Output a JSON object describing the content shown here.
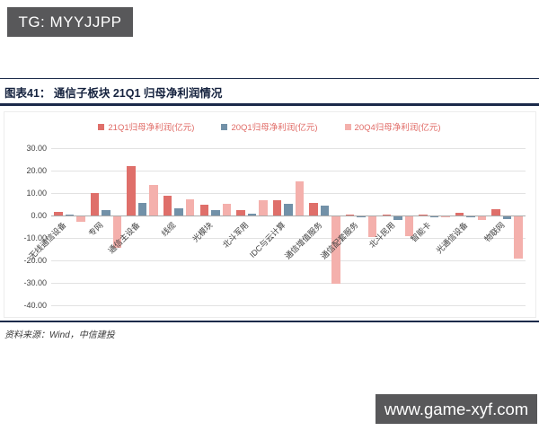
{
  "watermarks": {
    "tg_label": "TG: MYYJJPP",
    "site_label": "www.game-xyf.com"
  },
  "figure": {
    "title": "图表41：  通信子板块 21Q1 归母净利润情况",
    "source": "资料来源：Wind，中信建投"
  },
  "colors": {
    "series_21q1": "#df6f6a",
    "series_20q1": "#7291a8",
    "series_20q4": "#f4b0ac",
    "navy_rule": "#1b2a4a",
    "watermark_bg": "#58585a"
  },
  "chart_data": {
    "type": "bar",
    "title": "通信子板块 21Q1 归母净利润情况",
    "categories": [
      "无线通信设备",
      "专网",
      "通信主设备",
      "线缆",
      "光模块",
      "北斗军用",
      "IDC与云计算",
      "通信增值服务",
      "通信配套服务",
      "北斗民用",
      "智能卡",
      "光通信设备",
      "物联网"
    ],
    "series": [
      {
        "name": "21Q1归母净利润(亿元)",
        "color": "#df6f6a",
        "values": [
          1.7,
          10.0,
          22.0,
          9.0,
          5.0,
          2.4,
          6.7,
          5.6,
          0.3,
          0.2,
          0.5,
          1.1,
          2.9
        ]
      },
      {
        "name": "20Q1归母净利润(亿元)",
        "color": "#7291a8",
        "values": [
          0.4,
          2.4,
          5.7,
          3.1,
          2.3,
          1.0,
          5.1,
          4.3,
          -0.3,
          -1.5,
          -0.3,
          -0.5,
          -1.0
        ]
      },
      {
        "name": "20Q4归母净利润(亿元)",
        "color": "#f4b0ac",
        "values": [
          -2.3,
          -14.0,
          13.5,
          7.1,
          5.3,
          6.8,
          15.3,
          -30.0,
          -9.3,
          -8.7,
          -0.4,
          -1.6,
          -18.7
        ]
      }
    ],
    "ylabel": "",
    "xlabel": "",
    "ylim": [
      -40,
      30
    ],
    "y_tick_step": 10,
    "y_ticks": [
      "30.00",
      "20.00",
      "10.00",
      "0.00",
      "-10.00",
      "-20.00",
      "-30.00",
      "-40.00"
    ],
    "grid": true,
    "legend_position": "top"
  }
}
